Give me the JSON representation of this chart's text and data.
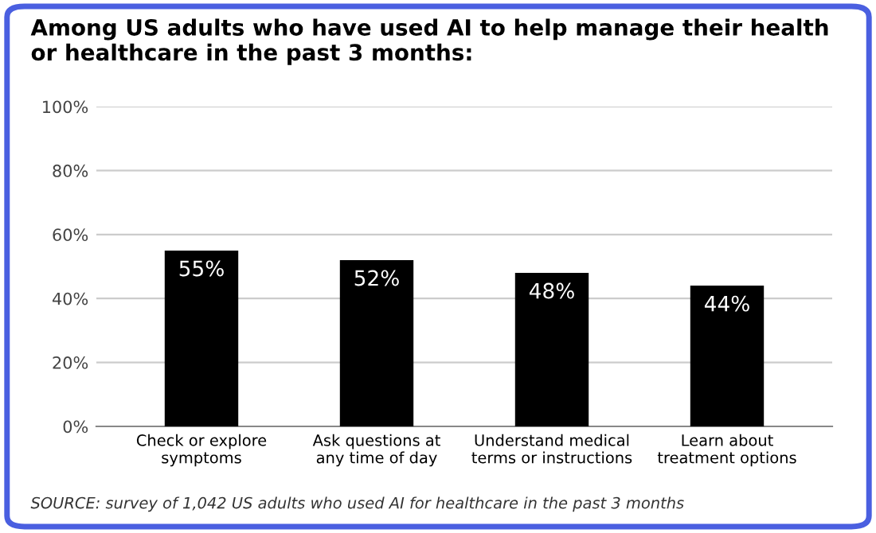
{
  "chart_data": {
    "type": "bar",
    "title": "Among US adults who have used AI to help manage their health\nor healthcare in the past 3 months:",
    "categories": [
      "Check or explore\nsymptoms",
      "Ask questions at\nany time of day",
      "Understand medical\nterms or instructions",
      "Learn about\ntreatment options"
    ],
    "values": [
      55,
      52,
      48,
      44
    ],
    "color": "#000000",
    "value_labels": [
      "55%",
      "52%",
      "48%",
      "44%"
    ],
    "ylim": [
      0,
      100
    ],
    "yticks": [
      {
        "value": 0,
        "label": "0%"
      },
      {
        "value": 20,
        "label": "20%"
      },
      {
        "value": 40,
        "label": "40%"
      },
      {
        "value": 60,
        "label": "60%"
      },
      {
        "value": 80,
        "label": "80%"
      },
      {
        "value": 100,
        "label": "100%"
      }
    ],
    "grid": "y",
    "annotations": [
      "SOURCE: survey of 1,042 US adults who used AI for healthcare in the past 3 months"
    ]
  }
}
